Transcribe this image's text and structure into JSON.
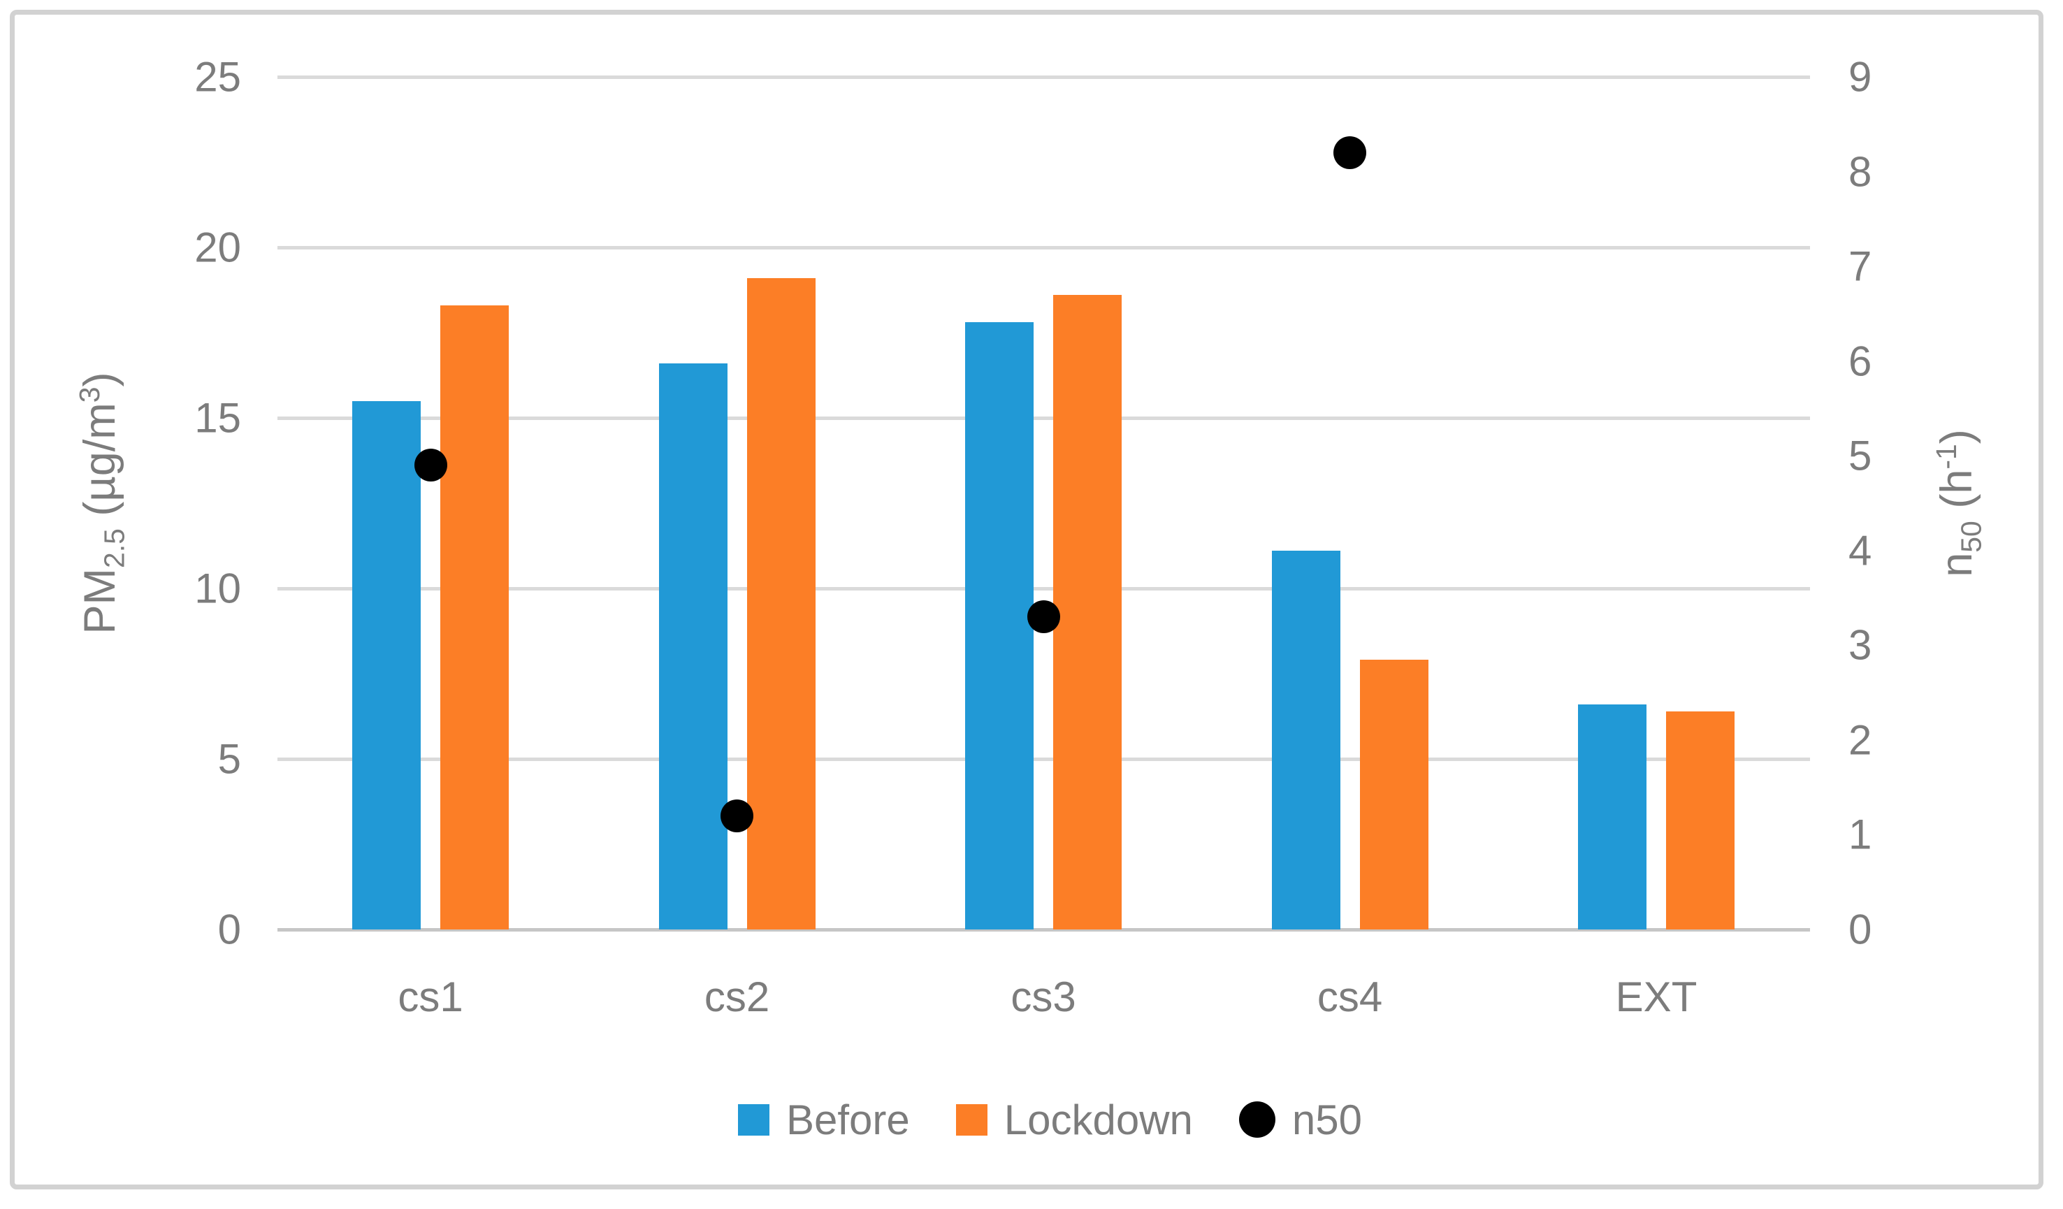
{
  "figure": {
    "kind": "combo-chart-figure",
    "colors": {
      "before_blue": "#2199D6",
      "lockdown_orange": "#FC7E26",
      "n50_black": "#000000",
      "gridline": "#DADADA",
      "axis_line": "#C6C6C6",
      "text_gray": "#7C7C7C",
      "frame_border": "#D2D2D2",
      "background": "#FFFFFF"
    }
  },
  "chart_data": {
    "type": "bar",
    "subtype": "grouped-bars-with-scatter-overlay",
    "categories": [
      "cs1",
      "cs2",
      "cs3",
      "cs4",
      "EXT"
    ],
    "series": [
      {
        "name": "Before",
        "type": "bar",
        "axis": "left",
        "color": "#2199D6",
        "values": [
          15.5,
          16.6,
          17.8,
          11.1,
          6.6
        ]
      },
      {
        "name": "Lockdown",
        "type": "bar",
        "axis": "left",
        "color": "#FC7E26",
        "values": [
          18.3,
          19.1,
          18.6,
          7.9,
          6.4
        ]
      },
      {
        "name": "n50",
        "type": "scatter",
        "axis": "right",
        "color": "#000000",
        "values": [
          4.9,
          1.2,
          3.3,
          8.2,
          null
        ]
      }
    ],
    "left_axis": {
      "label_parts": [
        {
          "t": "PM"
        },
        {
          "t": "2.5",
          "s": "sub"
        },
        {
          "t": " (µg/m"
        },
        {
          "t": "3",
          "s": "sup"
        },
        {
          "t": ")"
        }
      ],
      "ticks": [
        0,
        5,
        10,
        15,
        20,
        25
      ],
      "tick_labels": [
        "0",
        "5",
        "10",
        "15",
        "20",
        "25"
      ],
      "range": [
        0,
        25
      ]
    },
    "right_axis": {
      "label_parts": [
        {
          "t": "n"
        },
        {
          "t": "50",
          "s": "sub"
        },
        {
          "t": " (h"
        },
        {
          "t": "-1",
          "s": "sup"
        },
        {
          "t": ")"
        }
      ],
      "ticks": [
        0,
        1,
        2,
        3,
        4,
        5,
        6,
        7,
        8,
        9
      ],
      "tick_labels": [
        "0",
        "1",
        "2",
        "3",
        "4",
        "5",
        "6",
        "7",
        "8",
        "9"
      ],
      "range": [
        0,
        9
      ]
    },
    "legend": {
      "position": "bottom",
      "entries": [
        {
          "label": "Before",
          "marker": "square",
          "color": "#2199D6"
        },
        {
          "label": "Lockdown",
          "marker": "square",
          "color": "#FC7E26"
        },
        {
          "label": "n50",
          "marker": "circle",
          "color": "#000000"
        }
      ]
    },
    "grid": "horizontal-on"
  }
}
